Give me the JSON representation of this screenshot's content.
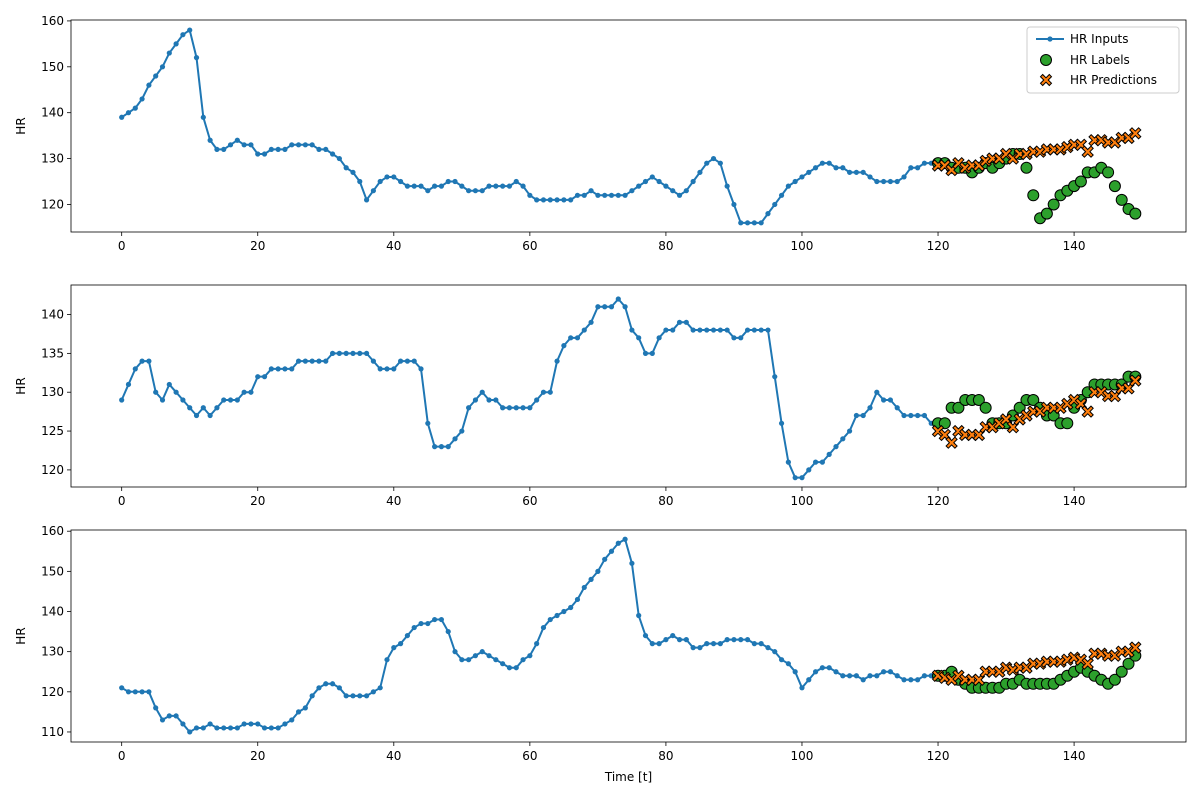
{
  "chart_data": [
    {
      "type": "line",
      "ylabel": "HR",
      "xlabel": "",
      "xlim": [
        -7.45,
        156.45
      ],
      "ylim": [
        114,
        160.2
      ],
      "xticks": [
        0,
        20,
        40,
        60,
        80,
        100,
        120,
        140
      ],
      "yticks": [
        120,
        130,
        140,
        150,
        160
      ],
      "legend": {
        "position": "top-right",
        "entries": [
          "HR Inputs",
          "HR Labels",
          "HR Predictions"
        ]
      },
      "series": [
        {
          "name": "HR Inputs",
          "kind": "line-markers",
          "color": "#1f77b4",
          "x_start": 0,
          "values": [
            139,
            140,
            141,
            143,
            146,
            148,
            150,
            153,
            155,
            157,
            158,
            152,
            139,
            134,
            132,
            132,
            133,
            134,
            133,
            133,
            131,
            131,
            132,
            132,
            132,
            133,
            133,
            133,
            133,
            132,
            132,
            131,
            130,
            128,
            127,
            125,
            121,
            123,
            125,
            126,
            126,
            125,
            124,
            124,
            124,
            123,
            124,
            124,
            125,
            125,
            124,
            123,
            123,
            123,
            124,
            124,
            124,
            124,
            125,
            124,
            122,
            121,
            121,
            121,
            121,
            121,
            121,
            122,
            122,
            123,
            122,
            122,
            122,
            122,
            122,
            123,
            124,
            125,
            126,
            125,
            124,
            123,
            122,
            123,
            125,
            127,
            129,
            130,
            129,
            124,
            120,
            116,
            116,
            116,
            116,
            118,
            120,
            122,
            124,
            125,
            126,
            127,
            128,
            129,
            129,
            128,
            128,
            127,
            127,
            127,
            126,
            125,
            125,
            125,
            125,
            126,
            128,
            128,
            129,
            129
          ]
        },
        {
          "name": "HR Labels",
          "kind": "scatter",
          "color": "#2ca02c",
          "x_start": 120,
          "values": [
            129,
            129,
            128,
            128,
            128,
            127,
            128,
            129,
            128,
            129,
            130,
            131,
            131,
            128,
            122,
            117,
            118,
            120,
            122,
            123,
            124,
            125,
            127,
            127,
            128,
            127,
            124,
            121,
            119,
            118
          ]
        },
        {
          "name": "HR Predictions",
          "kind": "scatter",
          "color": "#ff7f0e",
          "x_start": 120,
          "values": [
            128.5,
            128.5,
            127.5,
            129,
            128,
            128.5,
            128.5,
            129.5,
            130,
            130,
            131,
            130,
            131,
            131,
            131.5,
            131.5,
            132,
            132,
            132,
            132.5,
            133,
            133,
            131.5,
            134,
            134,
            133.5,
            133.5,
            134.5,
            134.5,
            135.5
          ]
        }
      ]
    },
    {
      "type": "line",
      "ylabel": "HR",
      "xlabel": "",
      "xlim": [
        -7.45,
        156.45
      ],
      "ylim": [
        117.8,
        143.8
      ],
      "xticks": [
        0,
        20,
        40,
        60,
        80,
        100,
        120,
        140
      ],
      "yticks": [
        120,
        125,
        130,
        135,
        140
      ],
      "series": [
        {
          "name": "HR Inputs",
          "kind": "line-markers",
          "color": "#1f77b4",
          "x_start": 0,
          "values": [
            129,
            131,
            133,
            134,
            134,
            130,
            129,
            131,
            130,
            129,
            128,
            127,
            128,
            127,
            128,
            129,
            129,
            129,
            130,
            130,
            132,
            132,
            133,
            133,
            133,
            133,
            134,
            134,
            134,
            134,
            134,
            135,
            135,
            135,
            135,
            135,
            135,
            134,
            133,
            133,
            133,
            134,
            134,
            134,
            133,
            126,
            123,
            123,
            123,
            124,
            125,
            128,
            129,
            130,
            129,
            129,
            128,
            128,
            128,
            128,
            128,
            129,
            130,
            130,
            134,
            136,
            137,
            137,
            138,
            139,
            141,
            141,
            141,
            142,
            141,
            138,
            137,
            135,
            135,
            137,
            138,
            138,
            139,
            139,
            138,
            138,
            138,
            138,
            138,
            138,
            137,
            137,
            138,
            138,
            138,
            138,
            132,
            126,
            121,
            119,
            119,
            120,
            121,
            121,
            122,
            123,
            124,
            125,
            127,
            127,
            128,
            130,
            129,
            129,
            128,
            127,
            127,
            127,
            127,
            126
          ]
        },
        {
          "name": "HR Labels",
          "kind": "scatter",
          "color": "#2ca02c",
          "x_start": 120,
          "values": [
            126,
            126,
            128,
            128,
            129,
            129,
            129,
            128,
            126,
            126,
            126,
            127,
            128,
            129,
            129,
            128,
            127,
            127,
            126,
            126,
            128,
            129,
            130,
            131,
            131,
            131,
            131,
            131,
            132,
            132
          ]
        },
        {
          "name": "HR Predictions",
          "kind": "scatter",
          "color": "#ff7f0e",
          "x_start": 120,
          "values": [
            125,
            124.5,
            123.5,
            125,
            124.5,
            124.5,
            124.5,
            125.5,
            125.5,
            126,
            126.5,
            125.5,
            126.5,
            127,
            127.5,
            127.5,
            128,
            128,
            128,
            128.5,
            129,
            128.5,
            127.5,
            130,
            130,
            129.5,
            129.5,
            130.5,
            130.5,
            131.5
          ]
        }
      ]
    },
    {
      "type": "line",
      "ylabel": "HR",
      "xlabel": "Time [t]",
      "xlim": [
        -7.45,
        156.45
      ],
      "ylim": [
        107.5,
        160.3
      ],
      "xticks": [
        0,
        20,
        40,
        60,
        80,
        100,
        120,
        140
      ],
      "yticks": [
        110,
        120,
        130,
        140,
        150,
        160
      ],
      "series": [
        {
          "name": "HR Inputs",
          "kind": "line-markers",
          "color": "#1f77b4",
          "x_start": 0,
          "values": [
            121,
            120,
            120,
            120,
            120,
            116,
            113,
            114,
            114,
            112,
            110,
            111,
            111,
            112,
            111,
            111,
            111,
            111,
            112,
            112,
            112,
            111,
            111,
            111,
            112,
            113,
            115,
            116,
            119,
            121,
            122,
            122,
            121,
            119,
            119,
            119,
            119,
            120,
            121,
            128,
            131,
            132,
            134,
            136,
            137,
            137,
            138,
            138,
            135,
            130,
            128,
            128,
            129,
            130,
            129,
            128,
            127,
            126,
            126,
            128,
            129,
            132,
            136,
            138,
            139,
            140,
            141,
            143,
            146,
            148,
            150,
            153,
            155,
            157,
            158,
            152,
            139,
            134,
            132,
            132,
            133,
            134,
            133,
            133,
            131,
            131,
            132,
            132,
            132,
            133,
            133,
            133,
            133,
            132,
            132,
            131,
            130,
            128,
            127,
            125,
            121,
            123,
            125,
            126,
            126,
            125,
            124,
            124,
            124,
            123,
            124,
            124,
            125,
            125,
            124,
            123,
            123,
            123,
            124,
            124
          ]
        },
        {
          "name": "HR Labels",
          "kind": "scatter",
          "color": "#2ca02c",
          "x_start": 120,
          "values": [
            124,
            124,
            125,
            123,
            122,
            121,
            121,
            121,
            121,
            121,
            122,
            122,
            123,
            122,
            122,
            122,
            122,
            122,
            123,
            124,
            125,
            126,
            125,
            124,
            123,
            122,
            123,
            125,
            127,
            129
          ]
        },
        {
          "name": "HR Predictions",
          "kind": "scatter",
          "color": "#ff7f0e",
          "x_start": 120,
          "values": [
            124,
            123.5,
            123,
            124,
            123,
            123,
            123,
            125,
            125,
            125,
            126,
            125.5,
            126,
            126,
            127,
            127,
            127.5,
            127.5,
            127.5,
            128,
            128.5,
            128,
            127,
            129.5,
            129.5,
            129,
            129,
            130,
            130,
            131
          ]
        }
      ]
    }
  ]
}
